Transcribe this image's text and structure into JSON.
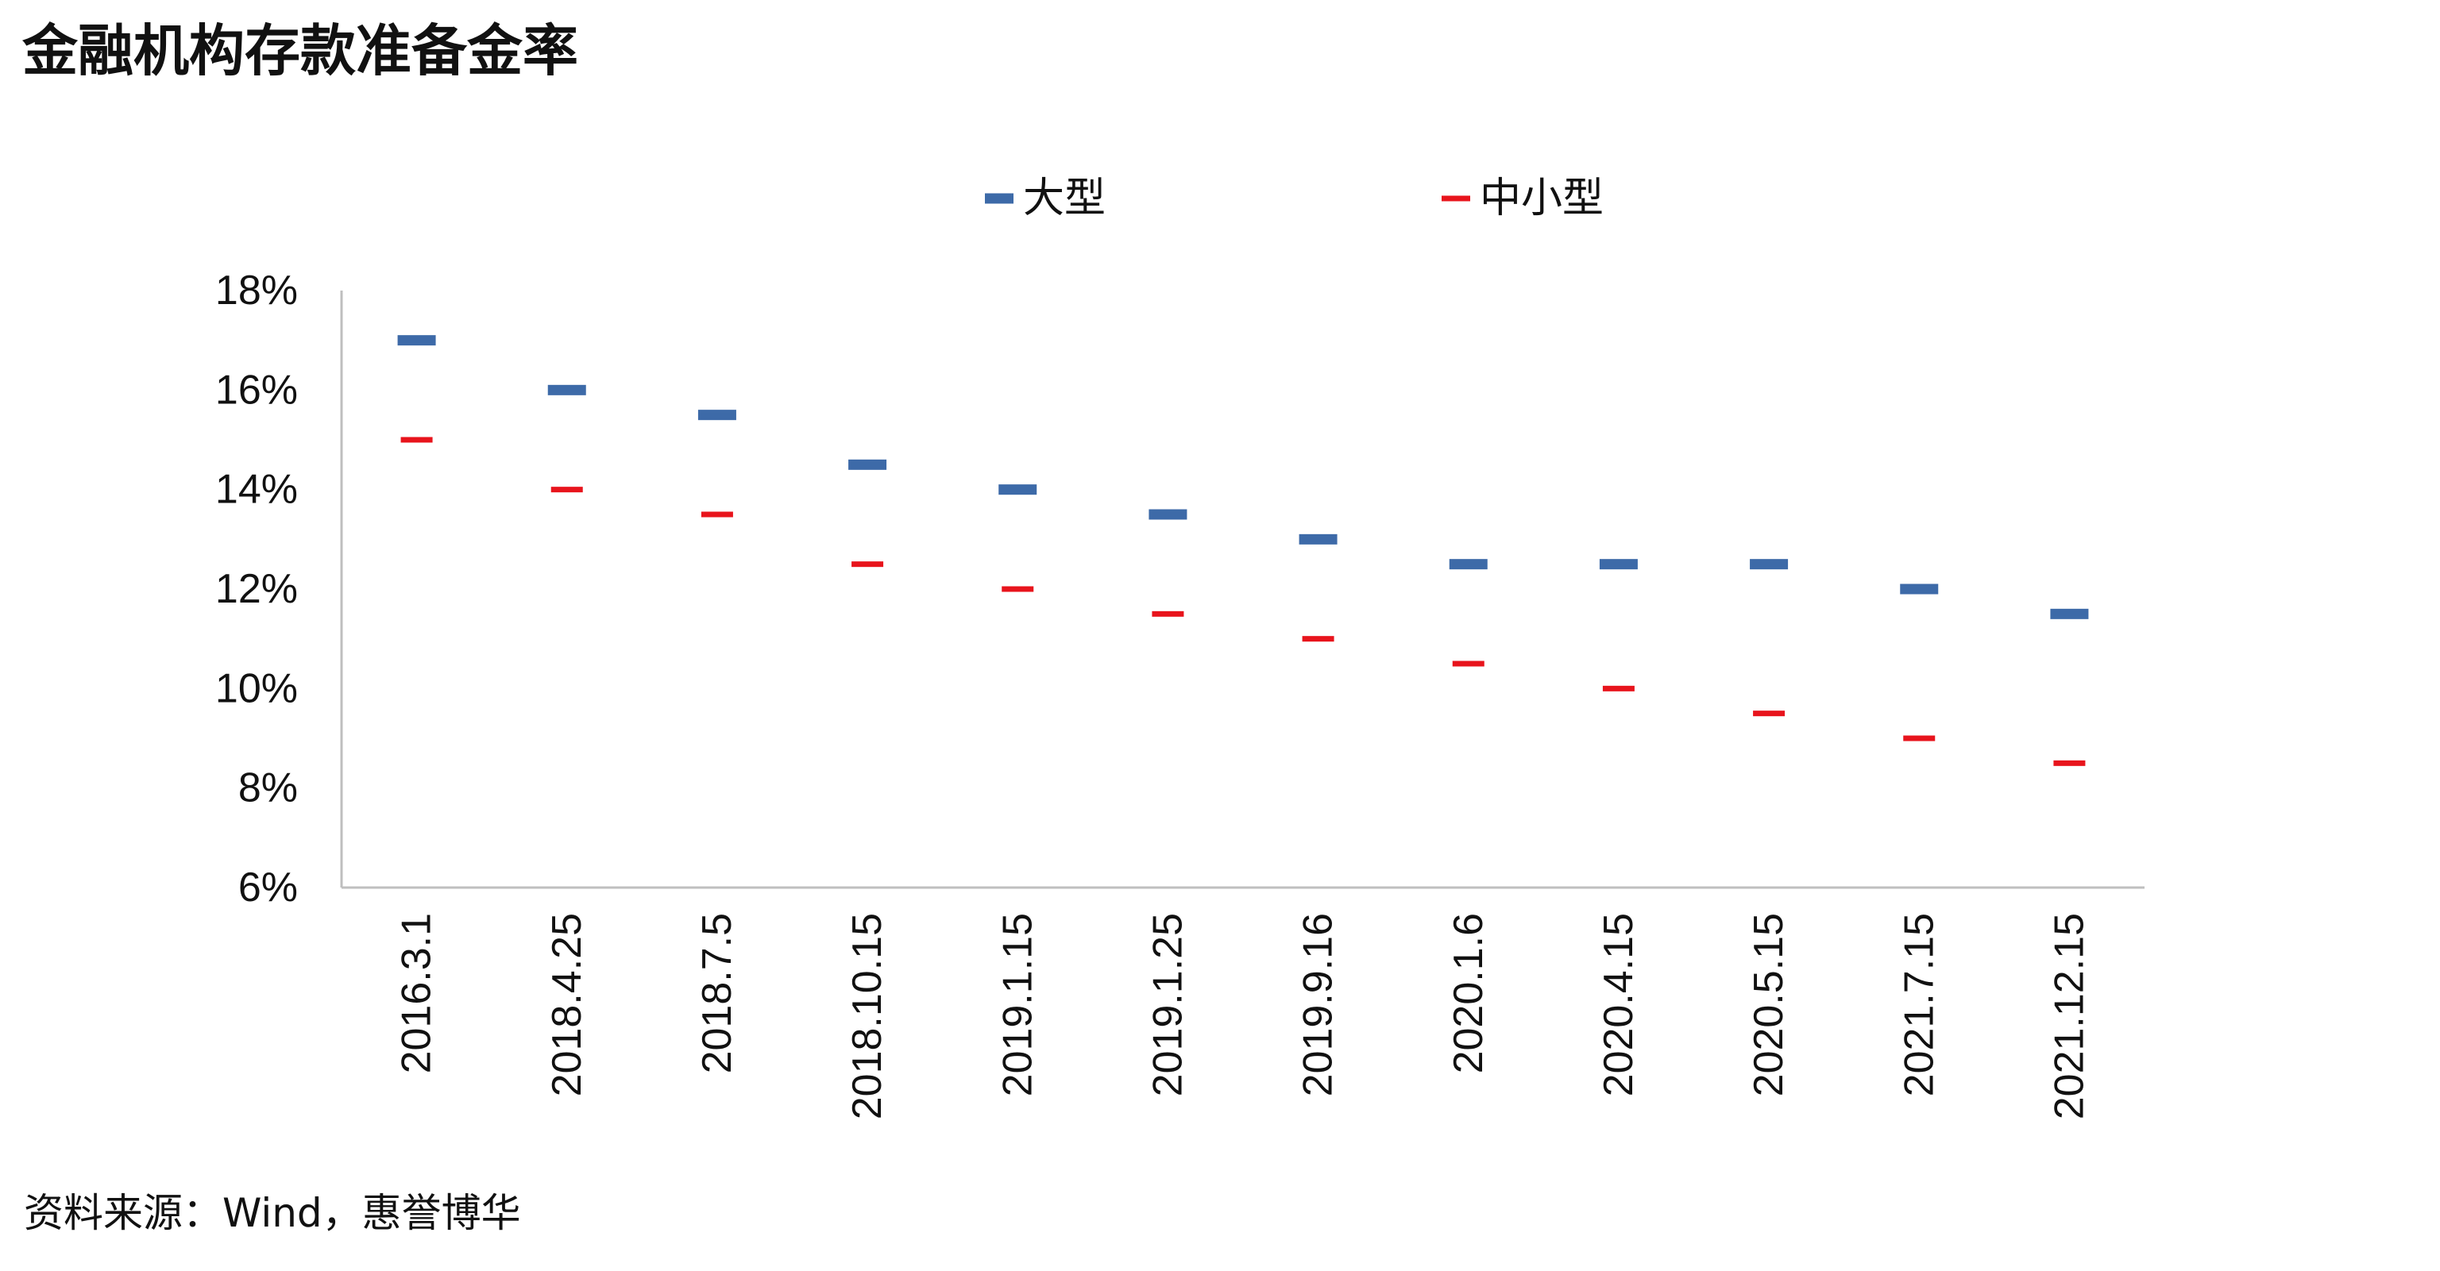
{
  "title": "金融机构存款准备金率",
  "source": "资料来源：Wind，惠誉博华",
  "chart_data": {
    "type": "scatter",
    "categories": [
      "2016.3.1",
      "2018.4.25",
      "2018.7.5",
      "2018.10.15",
      "2019.1.15",
      "2019.1.25",
      "2019.9.16",
      "2020.1.6",
      "2020.4.15",
      "2020.5.15",
      "2021.7.15",
      "2021.12.15"
    ],
    "series": [
      {
        "name": "大型",
        "color": "#3d6aa8",
        "values": [
          17.0,
          16.0,
          15.5,
          14.5,
          14.0,
          13.5,
          13.0,
          12.5,
          12.5,
          12.5,
          12.0,
          11.5
        ]
      },
      {
        "name": "中小型",
        "color": "#e8141c",
        "values": [
          15.0,
          14.0,
          13.5,
          12.5,
          12.0,
          11.5,
          11.0,
          10.5,
          10.0,
          9.5,
          9.0,
          8.5
        ]
      }
    ],
    "yticks": [
      "6%",
      "8%",
      "10%",
      "12%",
      "14%",
      "16%",
      "18%"
    ],
    "ylim": [
      6,
      18
    ],
    "legend_position": "top-center",
    "grid": false
  }
}
